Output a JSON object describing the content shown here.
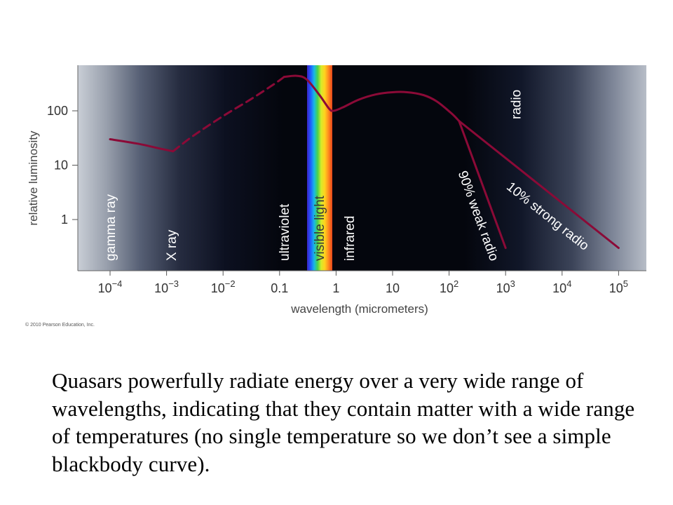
{
  "chart_data": {
    "type": "line",
    "xlabel": "wavelength (micrometers)",
    "ylabel": "relative luminosity",
    "x_scale": "log",
    "y_scale": "log",
    "xlim": [
      0.0001,
      100000
    ],
    "ylim": [
      0.1,
      1000
    ],
    "x_ticks": [
      {
        "value": 0.0001,
        "base": "10",
        "exp": "−4"
      },
      {
        "value": 0.001,
        "base": "10",
        "exp": "−3"
      },
      {
        "value": 0.01,
        "base": "10",
        "exp": "−2"
      },
      {
        "value": 0.1,
        "base": "0.1",
        "exp": ""
      },
      {
        "value": 1,
        "base": "1",
        "exp": ""
      },
      {
        "value": 10,
        "base": "10",
        "exp": ""
      },
      {
        "value": 100,
        "base": "10",
        "exp": "2"
      },
      {
        "value": 1000,
        "base": "10",
        "exp": "3"
      },
      {
        "value": 10000,
        "base": "10",
        "exp": "4"
      },
      {
        "value": 100000,
        "base": "10",
        "exp": "5"
      }
    ],
    "y_ticks": [
      {
        "value": 1,
        "label": "1"
      },
      {
        "value": 10,
        "label": "10"
      },
      {
        "value": 100,
        "label": "100"
      }
    ],
    "bands": [
      {
        "name": "gamma ray",
        "x": 0.0001,
        "dark_text": false
      },
      {
        "name": "X ray",
        "x": 0.0012,
        "dark_text": false
      },
      {
        "name": "ultraviolet",
        "x": 0.12,
        "dark_text": false
      },
      {
        "name": "visible light",
        "x": 0.5,
        "dark_text": true
      },
      {
        "name": "infrared",
        "x": 1.7,
        "dark_text": false
      },
      {
        "name": "radio",
        "x": 1500,
        "dark_text": false
      }
    ],
    "series": [
      {
        "style": "solid",
        "points": [
          [
            0.0001,
            30
          ],
          [
            0.0003,
            25
          ],
          [
            0.0008,
            20
          ],
          [
            0.0013,
            18
          ]
        ]
      },
      {
        "style": "dashed",
        "points": [
          [
            0.0013,
            18
          ],
          [
            0.003,
            35
          ],
          [
            0.01,
            80
          ],
          [
            0.03,
            160
          ],
          [
            0.08,
            310
          ],
          [
            0.12,
            420
          ]
        ]
      },
      {
        "style": "solid",
        "points": [
          [
            0.12,
            420
          ],
          [
            0.2,
            440
          ],
          [
            0.3,
            380
          ],
          [
            0.5,
            200
          ],
          [
            0.75,
            110
          ],
          [
            0.9,
            100
          ],
          [
            1.3,
            115
          ],
          [
            2.5,
            160
          ],
          [
            5,
            200
          ],
          [
            10,
            220
          ],
          [
            18,
            220
          ],
          [
            35,
            195
          ],
          [
            60,
            150
          ],
          [
            110,
            90
          ],
          [
            150,
            65
          ]
        ]
      },
      {
        "name": "90% weak radio",
        "style": "solid",
        "points": [
          [
            150,
            65
          ],
          [
            1000,
            0.3
          ]
        ]
      },
      {
        "name": "10% strong radio",
        "style": "solid",
        "points": [
          [
            150,
            65
          ],
          [
            100000,
            0.3
          ]
        ]
      }
    ],
    "annotations": [
      {
        "text": "90% weak radio",
        "x": 280,
        "y": 1.1
      },
      {
        "text": "10% strong radio",
        "x": 5000,
        "y": 1.0
      }
    ],
    "credit": "© 2010 Pearson Education, Inc.",
    "line_color": "#8b0a37"
  },
  "caption": "Quasars powerfully radiate energy over a very wide range of wavelengths, indicating that they contain matter with a wide range of temperatures (no single temperature so we don’t see a simple blackbody curve)."
}
